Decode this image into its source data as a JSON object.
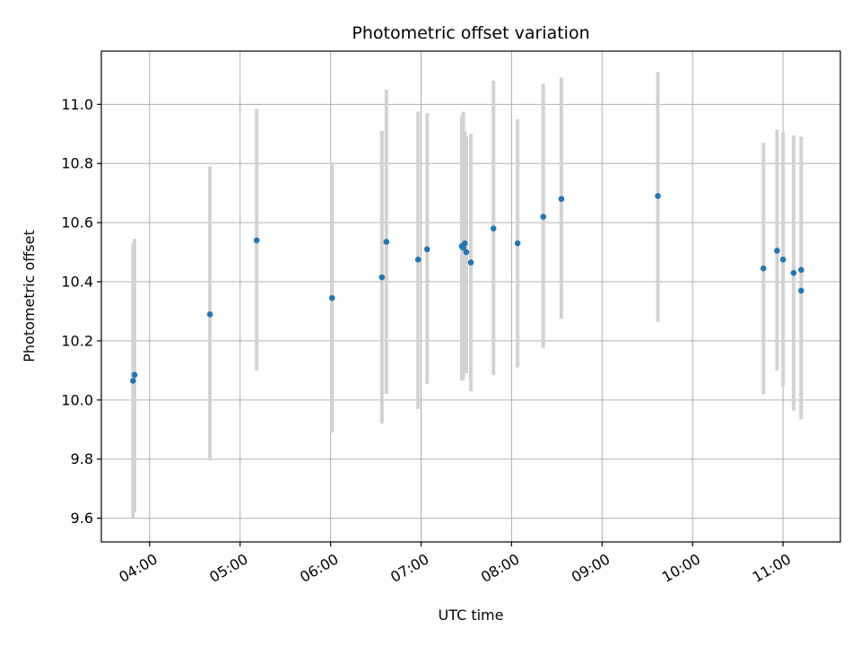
{
  "chart_data": {
    "type": "scatter",
    "title": "Photometric offset variation",
    "xlabel": "UTC time",
    "ylabel": "Photometric offset",
    "grid": true,
    "x_unit": "UTC time (HH:MM)",
    "xlim": [
      "03:28",
      "11:38"
    ],
    "ylim": [
      9.52,
      11.18
    ],
    "x_ticks": [
      "04:00",
      "05:00",
      "06:00",
      "07:00",
      "08:00",
      "09:00",
      "10:00",
      "11:00"
    ],
    "y_ticks": [
      "9.6",
      "9.8",
      "10.0",
      "10.2",
      "10.4",
      "10.6",
      "10.8",
      "11.0"
    ],
    "colors": {
      "points": "#1f77b4",
      "errorbars": "#d3d3d3",
      "grid": "#b0b0b0"
    },
    "points": [
      {
        "t": "03:49",
        "y": 10.065,
        "lo": 9.6,
        "hi": 10.53
      },
      {
        "t": "03:50",
        "y": 10.085,
        "lo": 9.62,
        "hi": 10.545
      },
      {
        "t": "04:40",
        "y": 10.29,
        "lo": 9.795,
        "hi": 10.79
      },
      {
        "t": "05:11",
        "y": 10.54,
        "lo": 10.1,
        "hi": 10.985
      },
      {
        "t": "06:01",
        "y": 10.345,
        "lo": 9.89,
        "hi": 10.805
      },
      {
        "t": "06:34",
        "y": 10.415,
        "lo": 9.92,
        "hi": 10.91
      },
      {
        "t": "06:37",
        "y": 10.535,
        "lo": 10.02,
        "hi": 11.05
      },
      {
        "t": "06:58",
        "y": 10.475,
        "lo": 9.97,
        "hi": 10.975
      },
      {
        "t": "07:04",
        "y": 10.51,
        "lo": 10.055,
        "hi": 10.97
      },
      {
        "t": "07:27",
        "y": 10.52,
        "lo": 10.065,
        "hi": 10.96
      },
      {
        "t": "07:28",
        "y": 10.515,
        "lo": 10.07,
        "hi": 10.975
      },
      {
        "t": "07:29",
        "y": 10.53,
        "lo": 10.1,
        "hi": 10.91
      },
      {
        "t": "07:30",
        "y": 10.5,
        "lo": 10.09,
        "hi": 10.89
      },
      {
        "t": "07:33",
        "y": 10.465,
        "lo": 10.03,
        "hi": 10.9
      },
      {
        "t": "07:48",
        "y": 10.58,
        "lo": 10.085,
        "hi": 11.08
      },
      {
        "t": "08:04",
        "y": 10.53,
        "lo": 10.11,
        "hi": 10.95
      },
      {
        "t": "08:21",
        "y": 10.62,
        "lo": 10.175,
        "hi": 11.07
      },
      {
        "t": "08:33",
        "y": 10.68,
        "lo": 10.275,
        "hi": 11.09
      },
      {
        "t": "09:37",
        "y": 10.69,
        "lo": 10.265,
        "hi": 11.11
      },
      {
        "t": "10:47",
        "y": 10.445,
        "lo": 10.02,
        "hi": 10.87
      },
      {
        "t": "10:56",
        "y": 10.505,
        "lo": 10.1,
        "hi": 10.915
      },
      {
        "t": "11:00",
        "y": 10.475,
        "lo": 10.045,
        "hi": 10.905
      },
      {
        "t": "11:07",
        "y": 10.43,
        "lo": 9.965,
        "hi": 10.895
      },
      {
        "t": "11:12",
        "y": 10.44,
        "lo": 9.935,
        "hi": 10.89
      },
      {
        "t": "11:12",
        "y": 10.37,
        "lo": 9.935,
        "hi": 10.805
      }
    ]
  }
}
